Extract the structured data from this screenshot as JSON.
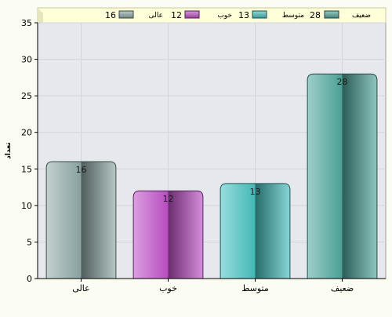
{
  "chart_data": {
    "type": "bar",
    "title": "",
    "xlabel": "",
    "ylabel": "تعداد",
    "ylim": [
      0,
      35
    ],
    "yticks": [
      0,
      5,
      10,
      15,
      20,
      25,
      30,
      35
    ],
    "grid": true,
    "legend_position": "top",
    "categories": [
      "عالی",
      "خوب",
      "متوسط",
      "ضعیف"
    ],
    "values": [
      16,
      12,
      13,
      28
    ],
    "colors": [
      "#8fa9a8",
      "#c050c8",
      "#45c2c0",
      "#4fa79d"
    ],
    "legend": [
      {
        "label": "ضعیف",
        "value": "28",
        "color": "#4fa79d"
      },
      {
        "label": "متوسط",
        "value": "13",
        "color": "#45c2c0"
      },
      {
        "label": "خوب",
        "value": "12",
        "color": "#c050c8"
      },
      {
        "label": "عالی",
        "value": "16",
        "color": "#8fa9a8"
      }
    ],
    "background_color": "#e6e8ee",
    "page_color": "#fcfdf2",
    "legend_background": "#ffffd8"
  }
}
